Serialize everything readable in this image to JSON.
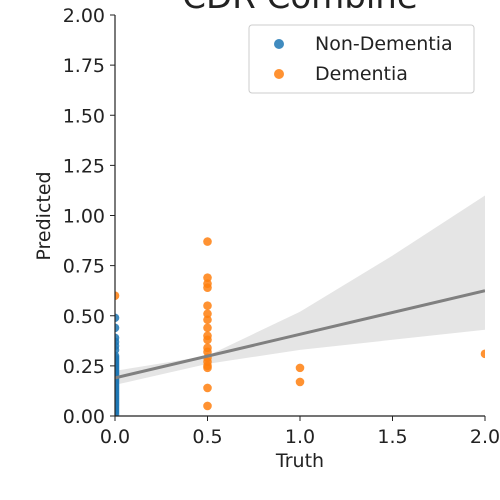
{
  "chart_data": {
    "type": "scatter",
    "title": "CDR Combine",
    "xlabel": "Truth",
    "ylabel": "Predicted",
    "xlim": [
      0,
      2
    ],
    "ylim": [
      0,
      2
    ],
    "x_ticks": [
      "0.0",
      "0.5",
      "1.0",
      "1.5",
      "2.0"
    ],
    "y_ticks": [
      "0.00",
      "0.25",
      "0.50",
      "0.75",
      "1.00",
      "1.25",
      "1.50",
      "1.75",
      "2.00"
    ],
    "grid": false,
    "legend": "top-right",
    "series": [
      {
        "name": "Non-Dementia",
        "color": "#1f77b4",
        "points": [
          [
            0,
            0.49
          ],
          [
            0,
            0.44
          ],
          [
            0,
            0.39
          ],
          [
            0,
            0.37
          ],
          [
            0,
            0.35
          ],
          [
            0,
            0.33
          ],
          [
            0,
            0.3
          ],
          [
            0,
            0.29
          ],
          [
            0,
            0.28
          ],
          [
            0,
            0.27
          ],
          [
            0,
            0.26
          ],
          [
            0,
            0.25
          ],
          [
            0,
            0.24
          ],
          [
            0,
            0.23
          ],
          [
            0,
            0.22
          ],
          [
            0,
            0.21
          ],
          [
            0,
            0.2
          ],
          [
            0,
            0.19
          ],
          [
            0,
            0.18
          ],
          [
            0,
            0.17
          ],
          [
            0,
            0.16
          ],
          [
            0,
            0.15
          ],
          [
            0,
            0.14
          ],
          [
            0,
            0.13
          ],
          [
            0,
            0.12
          ],
          [
            0,
            0.11
          ],
          [
            0,
            0.1
          ],
          [
            0,
            0.09
          ],
          [
            0,
            0.08
          ],
          [
            0,
            0.07
          ],
          [
            0,
            0.06
          ],
          [
            0,
            0.05
          ],
          [
            0,
            0.04
          ],
          [
            0,
            0.03
          ],
          [
            0,
            0.02
          ],
          [
            0,
            0.01
          ]
        ]
      },
      {
        "name": "Dementia",
        "color": "#ff7f0e",
        "points": [
          [
            0,
            0.6
          ],
          [
            0.5,
            0.87
          ],
          [
            0.5,
            0.69
          ],
          [
            0.5,
            0.66
          ],
          [
            0.5,
            0.64
          ],
          [
            0.5,
            0.55
          ],
          [
            0.5,
            0.51
          ],
          [
            0.5,
            0.48
          ],
          [
            0.5,
            0.44
          ],
          [
            0.5,
            0.4
          ],
          [
            0.5,
            0.38
          ],
          [
            0.5,
            0.34
          ],
          [
            0.5,
            0.32
          ],
          [
            0.5,
            0.29
          ],
          [
            0.5,
            0.27
          ],
          [
            0.5,
            0.25
          ],
          [
            0.5,
            0.24
          ],
          [
            0.5,
            0.14
          ],
          [
            0.5,
            0.05
          ],
          [
            1.0,
            0.24
          ],
          [
            1.0,
            0.17
          ],
          [
            2.0,
            0.31
          ]
        ]
      }
    ],
    "regression": {
      "color": "#808080",
      "band_color": "#e5e5e5",
      "line": [
        [
          0,
          0.19
        ],
        [
          2,
          0.625
        ]
      ],
      "band_upper": [
        [
          0,
          0.225
        ],
        [
          0.5,
          0.3
        ],
        [
          1.0,
          0.52
        ],
        [
          1.5,
          0.8
        ],
        [
          2.0,
          1.1
        ]
      ],
      "band_lower": [
        [
          0,
          0.155
        ],
        [
          0.5,
          0.26
        ],
        [
          1.0,
          0.33
        ],
        [
          1.5,
          0.38
        ],
        [
          2.0,
          0.43
        ]
      ]
    }
  }
}
